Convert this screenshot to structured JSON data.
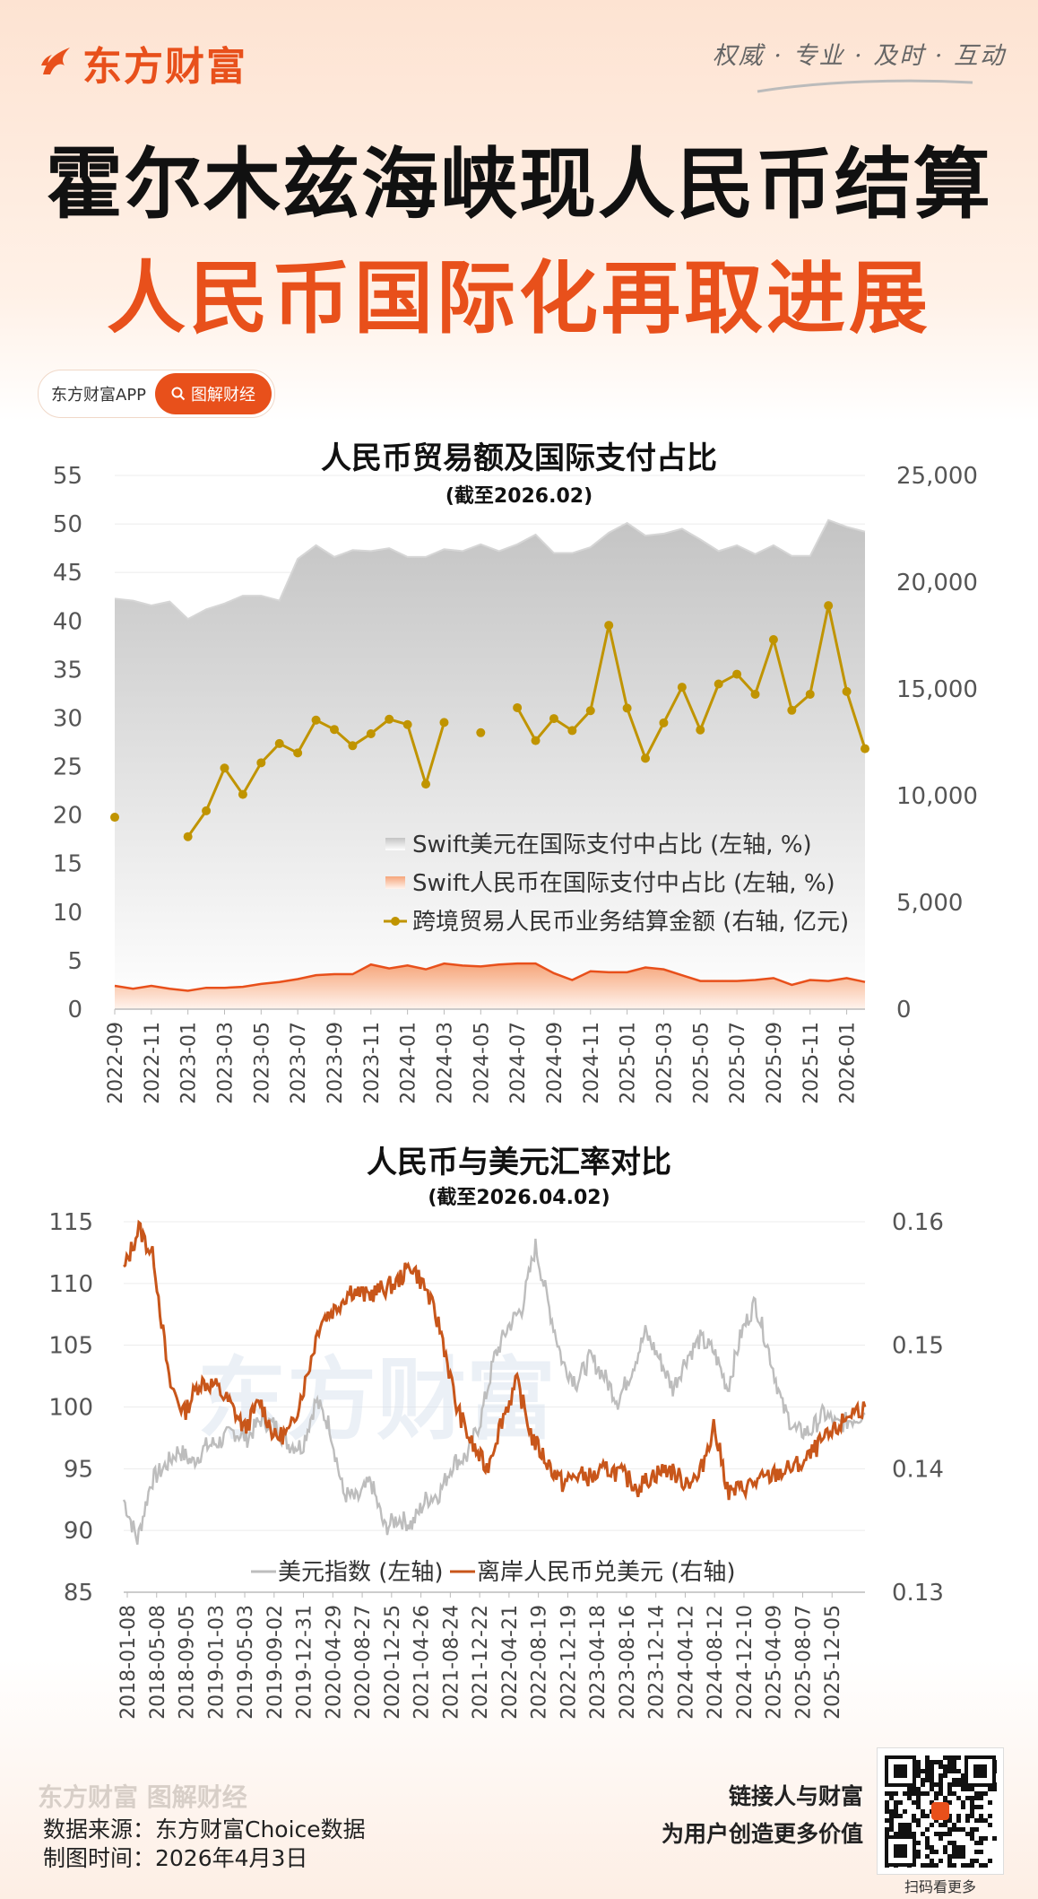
{
  "brand": {
    "name": "东方财富",
    "slogan": "权威 · 专业 · 及时 · 互动",
    "accent": "#e8501b"
  },
  "headline": {
    "line1": "霍尔木兹海峡现人民币结算",
    "line2": "人民币国际化再取进展"
  },
  "badge": {
    "app_label": "东方财富APP",
    "button_label": "图解财经"
  },
  "watermark": "东方财富",
  "chart_data": [
    {
      "type": "area+line",
      "title": "人民币贸易额及国际支付占比",
      "subtitle": "(截至2026.02)",
      "left_axis": {
        "ylim": [
          0,
          55
        ],
        "ticks": [
          "55",
          "50",
          "45",
          "40",
          "35",
          "30",
          "25",
          "20",
          "15",
          "10",
          "5",
          "0"
        ]
      },
      "right_axis": {
        "ylim": [
          0,
          25000
        ],
        "ticks": [
          "25,000",
          "20,000",
          "15,000",
          "10,000",
          "5,000",
          "0"
        ]
      },
      "x_tick_labels": [
        "2022-09",
        "2022-11",
        "2023-01",
        "2023-03",
        "2023-05",
        "2023-07",
        "2023-09",
        "2023-11",
        "2024-01",
        "2024-03",
        "2024-05",
        "2024-07",
        "2024-09",
        "2024-11",
        "2025-01",
        "2025-03",
        "2025-05",
        "2025-07",
        "2025-09",
        "2025-11",
        "2026-01"
      ],
      "legend": [
        "Swift美元在国际支付中占比 (左轴, %)",
        "Swift人民币在国际支付中占比 (左轴, %)",
        "跨境贸易人民币业务结算金额 (右轴, 亿元)"
      ],
      "series": [
        {
          "name": "Swift美元在国际支付中占比",
          "axis": "left",
          "values": [
            42.3,
            42.1,
            41.6,
            42.0,
            40.2,
            41.2,
            41.8,
            42.6,
            42.6,
            42.1,
            46.4,
            47.8,
            46.6,
            47.3,
            47.2,
            47.5,
            46.6,
            46.6,
            47.4,
            47.2,
            47.9,
            47.2,
            47.9,
            48.9,
            47.0,
            47.0,
            47.6,
            49.1,
            50.1,
            48.8,
            49.0,
            49.5,
            48.4,
            47.2,
            47.8,
            46.9,
            47.8,
            46.7,
            46.7,
            50.4,
            49.7,
            49.2
          ]
        },
        {
          "name": "Swift人民币在国际支付中占比",
          "axis": "left",
          "values": [
            2.4,
            2.1,
            2.4,
            2.1,
            1.9,
            2.2,
            2.2,
            2.3,
            2.6,
            2.8,
            3.1,
            3.5,
            3.6,
            3.6,
            4.6,
            4.2,
            4.5,
            4.1,
            4.7,
            4.5,
            4.4,
            4.6,
            4.7,
            4.7,
            3.7,
            3.0,
            3.9,
            3.8,
            3.8,
            4.3,
            4.1,
            3.5,
            2.9,
            2.9,
            2.9,
            3.0,
            3.2,
            2.5,
            3.0,
            2.9,
            3.2,
            2.8
          ]
        },
        {
          "name": "跨境贸易人民币业务结算金额",
          "axis": "right",
          "values": [
            8990,
            null,
            null,
            null,
            8080,
            9290,
            11290,
            10060,
            11540,
            12440,
            12000,
            13540,
            13100,
            12340,
            12900,
            13580,
            13330,
            10540,
            13430,
            null,
            12950,
            null,
            14120,
            12580,
            13610,
            13050,
            13980,
            17980,
            14100,
            11750,
            13410,
            15080,
            13080,
            15230,
            15690,
            14750,
            17310,
            14000,
            14750,
            18900,
            14880,
            12200
          ]
        }
      ]
    },
    {
      "type": "line",
      "title": "人民币与美元汇率对比",
      "subtitle": "(截至2026.04.02)",
      "left_axis": {
        "ylim": [
          85,
          115
        ],
        "ticks": [
          "115",
          "110",
          "105",
          "100",
          "95",
          "90",
          "85"
        ]
      },
      "right_axis": {
        "ylim": [
          0.13,
          0.16
        ],
        "ticks": [
          "0.16",
          "0.15",
          "0.14",
          "0.13"
        ]
      },
      "x_tick_labels": [
        "2018-01-08",
        "2018-05-08",
        "2018-09-05",
        "2019-01-03",
        "2019-05-03",
        "2019-09-02",
        "2019-12-31",
        "2020-04-29",
        "2020-08-27",
        "2020-12-25",
        "2021-04-26",
        "2021-08-24",
        "2021-12-22",
        "2022-04-21",
        "2022-08-19",
        "2022-12-19",
        "2023-04-18",
        "2023-08-16",
        "2023-12-14",
        "2024-04-12",
        "2024-08-12",
        "2024-12-10",
        "2025-04-09",
        "2025-08-07",
        "2025-12-05"
      ],
      "legend": [
        "美元指数 (左轴)",
        "离岸人民币兑美元 (右轴)"
      ],
      "series": [
        {
          "name": "美元指数",
          "axis": "left",
          "values": [
            92.5,
            89.2,
            94.0,
            95.2,
            96.5,
            95.5,
            96.8,
            97.2,
            98.0,
            97.5,
            99.0,
            98.5,
            97.0,
            96.8,
            100.5,
            98.5,
            93.0,
            92.5,
            94.0,
            90.2,
            91.0,
            90.5,
            92.5,
            93.0,
            95.5,
            96.0,
            99.0,
            104.0,
            106.5,
            108.0,
            113.0,
            108.0,
            103.5,
            102.0,
            104.0,
            102.5,
            100.5,
            103.0,
            106.0,
            104.0,
            101.5,
            104.0,
            105.5,
            104.5,
            101.5,
            106.0,
            108.5,
            104.5,
            100.0,
            98.0,
            98.0,
            99.5,
            98.5,
            99.0,
            99.5
          ]
        },
        {
          "name": "离岸人民币兑美元",
          "axis": "right",
          "values": [
            0.156,
            0.1595,
            0.157,
            0.147,
            0.1445,
            0.147,
            0.1468,
            0.1453,
            0.1432,
            0.1455,
            0.1425,
            0.143,
            0.147,
            0.152,
            0.153,
            0.1545,
            0.154,
            0.1545,
            0.155,
            0.1565,
            0.1545,
            0.151,
            0.145,
            0.142,
            0.14,
            0.144,
            0.147,
            0.1425,
            0.1405,
            0.1388,
            0.1395,
            0.1393,
            0.14,
            0.1395,
            0.1385,
            0.1395,
            0.14,
            0.139,
            0.1392,
            0.1435,
            0.138,
            0.1385,
            0.139,
            0.1395,
            0.14,
            0.1405,
            0.142,
            0.143,
            0.1445,
            0.145
          ]
        }
      ]
    }
  ],
  "footer": {
    "brand": "东方财富 图解财经",
    "source": "数据来源：东方财富Choice数据",
    "date": "制图时间：2026年4月3日",
    "tagline1": "链接人与财富",
    "tagline2": "为用户创造更多价值",
    "qr_caption": "扫码看更多"
  },
  "colors": {
    "usd_share": "#c8c8c8",
    "cny_share": "#e8501b",
    "trade": "#c09400",
    "dxy": "#bdbdbd",
    "cnh": "#c8561a"
  }
}
